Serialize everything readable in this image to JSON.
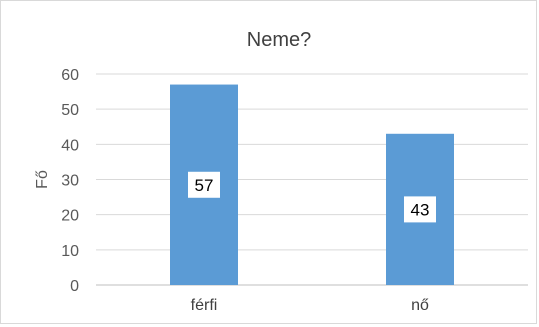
{
  "chart_data": {
    "type": "bar",
    "title": "Neme?",
    "xlabel": "",
    "ylabel": "Fő",
    "categories": [
      "férfi",
      "nő"
    ],
    "values": [
      57,
      43
    ],
    "data_labels": [
      "57",
      "43"
    ],
    "ylim": [
      0,
      60
    ],
    "yticks": [
      0,
      10,
      20,
      30,
      40,
      50,
      60
    ],
    "grid": true,
    "legend": "none",
    "colors": {
      "bar": "#5b9bd5",
      "grid": "#d9d9d9",
      "axis": "#bfbfbf"
    }
  }
}
